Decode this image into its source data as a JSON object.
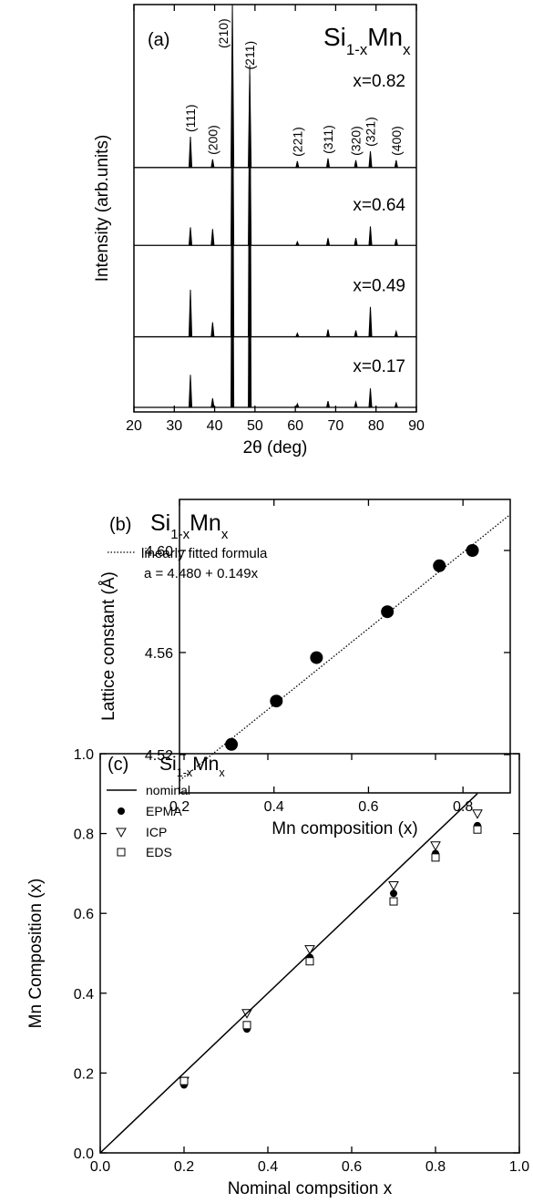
{
  "chart_data": [
    {
      "type": "xrd",
      "panel_label": "(a)",
      "title_parts": [
        "Si",
        "1-x",
        "Mn",
        "x"
      ],
      "xlabel": "2θ (deg)",
      "ylabel": "Intensity (arb.units)",
      "xlim": [
        20,
        90
      ],
      "xticks": [
        20,
        30,
        40,
        50,
        60,
        70,
        80,
        90
      ],
      "ylim": [
        0,
        4.5
      ],
      "color": "#000000",
      "peaks": {
        "labels": [
          "(111)",
          "(200)",
          "(210)",
          "(211)",
          "(221)",
          "(311)",
          "(320)",
          "(321)",
          "(400)"
        ],
        "x": [
          34.0,
          39.5,
          44.4,
          48.7,
          60.5,
          68.1,
          75.0,
          78.6,
          85.0
        ]
      },
      "series": [
        {
          "name": "x=0.82",
          "offset": 2.7,
          "values": [
            0.34,
            0.09,
            1.8,
            1.03,
            0.07,
            0.1,
            0.08,
            0.18,
            0.08
          ]
        },
        {
          "name": "x=0.64",
          "offset": 1.84,
          "values": [
            0.2,
            0.18,
            2.0,
            1.6,
            0.04,
            0.08,
            0.08,
            0.21,
            0.07
          ]
        },
        {
          "name": "x=0.49",
          "offset": 0.83,
          "values": [
            0.52,
            0.16,
            3.0,
            3.0,
            0.04,
            0.08,
            0.07,
            0.33,
            0.06
          ]
        },
        {
          "name": "x=0.17",
          "offset": 0.05,
          "values": [
            0.36,
            0.1,
            3.0,
            3.0,
            0.04,
            0.07,
            0.06,
            0.21,
            0.05
          ]
        }
      ]
    },
    {
      "type": "scatter",
      "panel_label": "(b)",
      "title_parts": [
        "Si",
        "1-x",
        "Mn",
        "x"
      ],
      "xlabel": "Mn composition (x)",
      "ylabel": "Lattice constant (Å)",
      "xlim": [
        0.2,
        0.9
      ],
      "xticks": [
        0.2,
        0.4,
        0.6,
        0.8
      ],
      "ylim": [
        4.505,
        4.62
      ],
      "yticks": [
        4.52,
        4.56,
        {
          "value": 4.6,
          "label": "4.60"
        }
      ],
      "color": "#000000",
      "x": [
        0.31,
        0.405,
        0.49,
        0.64,
        0.75,
        0.82
      ],
      "values": [
        4.524,
        4.541,
        4.558,
        4.576,
        4.594,
        4.6
      ],
      "fit": {
        "name": "linearly fitted formula",
        "label": "a = 4.480 + 0.149x",
        "intercept": 4.48,
        "slope": 0.149
      }
    },
    {
      "type": "multi",
      "panel_label": "(c)",
      "title_parts": [
        "Si",
        "1-x",
        "Mn",
        "x"
      ],
      "xlabel": "Nominal compsition x",
      "ylabel": "Mn Composition (x)",
      "xlim": [
        0,
        1
      ],
      "xticks": [
        {
          "value": 0,
          "label": "0.0"
        },
        0.2,
        0.4,
        0.6,
        0.8,
        {
          "value": 1,
          "label": "1.0"
        }
      ],
      "ylim": [
        0,
        1
      ],
      "yticks": [
        {
          "value": 0,
          "label": "0.0"
        },
        0.2,
        0.4,
        0.6,
        0.8,
        {
          "value": 1,
          "label": "1.0"
        }
      ],
      "series": [
        {
          "name": "nominal",
          "marker": "line",
          "color": "#000000",
          "x": [
            0,
            0.9
          ],
          "values": [
            0,
            0.9
          ]
        },
        {
          "name": "EPMA",
          "marker": "circle",
          "color": "#000000",
          "x": [
            0.2,
            0.35,
            0.5,
            0.7,
            0.8,
            0.9
          ],
          "values": [
            0.17,
            0.31,
            0.49,
            0.65,
            0.75,
            0.82
          ]
        },
        {
          "name": "ICP",
          "marker": "triangle-down",
          "color": "#000000",
          "x": [
            0.2,
            0.35,
            0.5,
            0.7,
            0.8,
            0.9
          ],
          "values": [
            0.18,
            0.35,
            0.51,
            0.67,
            0.77,
            0.85
          ]
        },
        {
          "name": "EDS",
          "marker": "square",
          "color": "#000000",
          "x": [
            0.2,
            0.35,
            0.5,
            0.7,
            0.8,
            0.9
          ],
          "values": [
            0.18,
            0.32,
            0.48,
            0.63,
            0.74,
            0.81
          ]
        }
      ]
    }
  ]
}
